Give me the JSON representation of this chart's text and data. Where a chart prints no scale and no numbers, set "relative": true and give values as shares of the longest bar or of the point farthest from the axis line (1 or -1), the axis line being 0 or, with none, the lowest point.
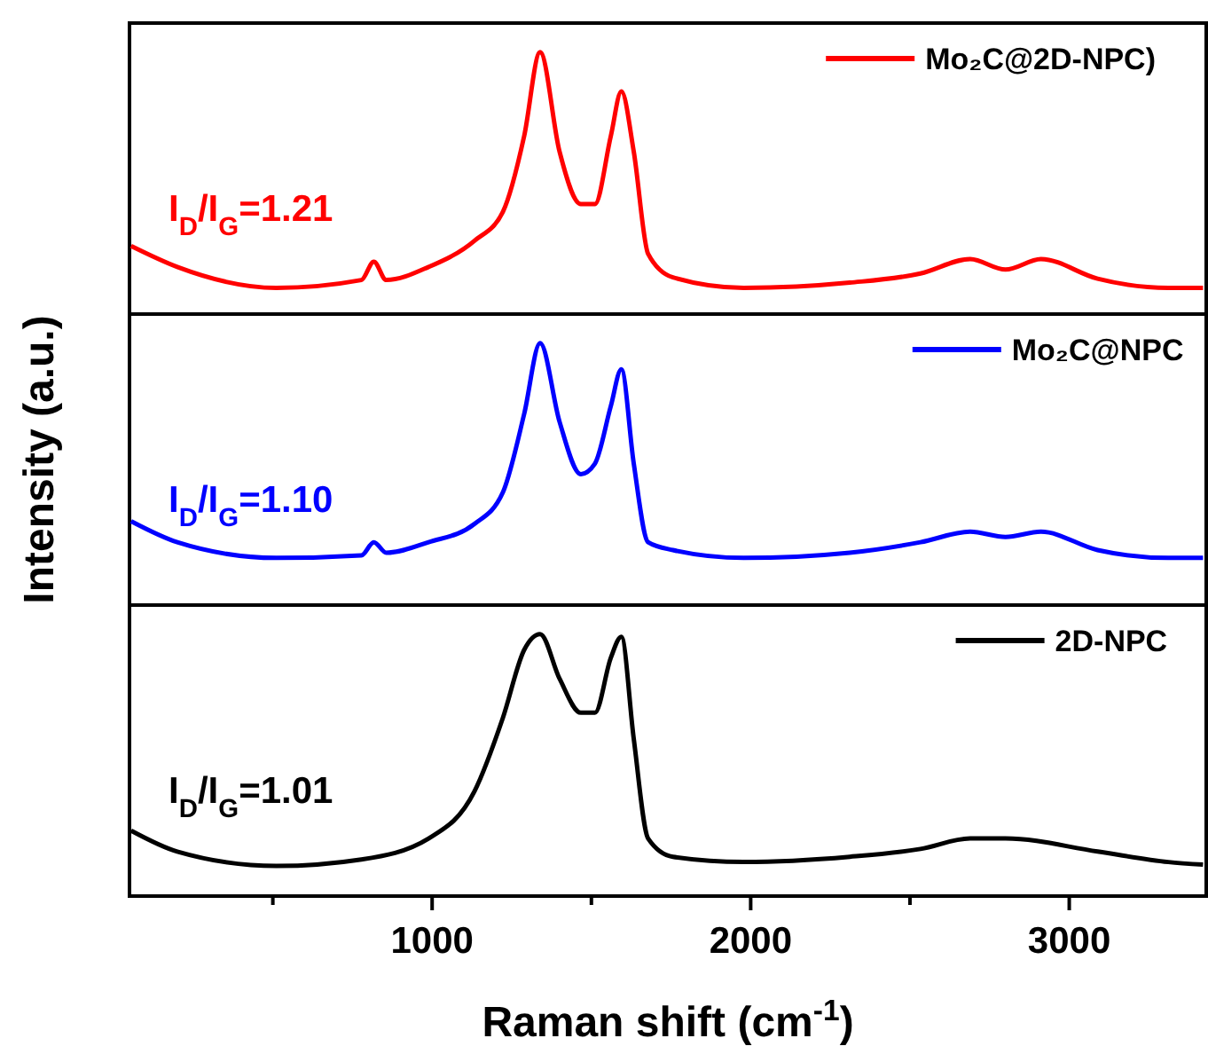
{
  "chart_data": [
    {
      "type": "line",
      "relative": true,
      "xlim": [
        50,
        3430
      ],
      "tick_labels": false,
      "legend": "top right",
      "annotations": [
        "I$_{D}$/I$_{G}$=1.21"
      ],
      "series": [
        {
          "name": "Mo₂C@2D-NPC)",
          "color": "#ff0000",
          "x": [
            55,
            200,
            511,
            778,
            817,
            856,
            989,
            1133,
            1222,
            1289,
            1339,
            1400,
            1467,
            1511,
            1561,
            1594,
            1633,
            1678,
            1756,
            1978,
            2311,
            2533,
            2689,
            2800,
            2911,
            3089,
            3311,
            3420
          ],
          "values": [
            0.26,
            0.18,
            0.1,
            0.13,
            0.2,
            0.13,
            0.18,
            0.28,
            0.39,
            0.68,
            1,
            0.62,
            0.42,
            0.42,
            0.68,
            0.85,
            0.62,
            0.23,
            0.14,
            0.1,
            0.12,
            0.155,
            0.21,
            0.17,
            0.21,
            0.135,
            0.1,
            0.1
          ]
        }
      ]
    },
    {
      "type": "line",
      "relative": true,
      "xlim": [
        50,
        3430
      ],
      "tick_labels": false,
      "legend": "top right",
      "ylabel": "Intensity (a.u.)",
      "annotations": [
        "I$_{D}$/I$_{G}$=1.10"
      ],
      "series": [
        {
          "name": "Mo₂C@NPC",
          "color": "#0000ff",
          "x": [
            55,
            200,
            511,
            778,
            817,
            856,
            989,
            1133,
            1222,
            1289,
            1339,
            1400,
            1467,
            1511,
            1561,
            1594,
            1633,
            1678,
            1756,
            1978,
            2311,
            2533,
            2689,
            2800,
            2911,
            3089,
            3311,
            3420
          ],
          "values": [
            0.32,
            0.24,
            0.18,
            0.19,
            0.24,
            0.2,
            0.24,
            0.31,
            0.43,
            0.73,
            1,
            0.7,
            0.5,
            0.54,
            0.76,
            0.9,
            0.54,
            0.24,
            0.21,
            0.18,
            0.2,
            0.24,
            0.28,
            0.26,
            0.28,
            0.21,
            0.18,
            0.18
          ]
        }
      ]
    },
    {
      "type": "line",
      "relative": true,
      "xlim": [
        50,
        3430
      ],
      "xticks": [
        {
          "value": 500,
          "label": null
        },
        1000,
        {
          "value": 1500,
          "label": null
        },
        2000,
        {
          "value": 2500,
          "label": null
        },
        3000
      ],
      "tick_labels": "x",
      "legend": "top right",
      "xlabel": "Raman shift (cm$^{-1}$)",
      "annotations": [
        "I$_{D}$/I$_{G}$=1.01"
      ],
      "series": [
        {
          "name": "2D-NPC",
          "color": "#000000",
          "x": [
            55,
            200,
            511,
            778,
            989,
            1133,
            1222,
            1289,
            1339,
            1400,
            1467,
            1511,
            1561,
            1594,
            1633,
            1678,
            1756,
            1978,
            2311,
            2533,
            2689,
            2800,
            3089,
            3311,
            3420
          ],
          "values": [
            0.25,
            0.17,
            0.115,
            0.14,
            0.22,
            0.4,
            0.68,
            0.94,
            1,
            0.83,
            0.7,
            0.7,
            0.91,
            0.99,
            0.6,
            0.22,
            0.15,
            0.13,
            0.15,
            0.18,
            0.22,
            0.22,
            0.17,
            0.13,
            0.12
          ]
        }
      ]
    }
  ]
}
